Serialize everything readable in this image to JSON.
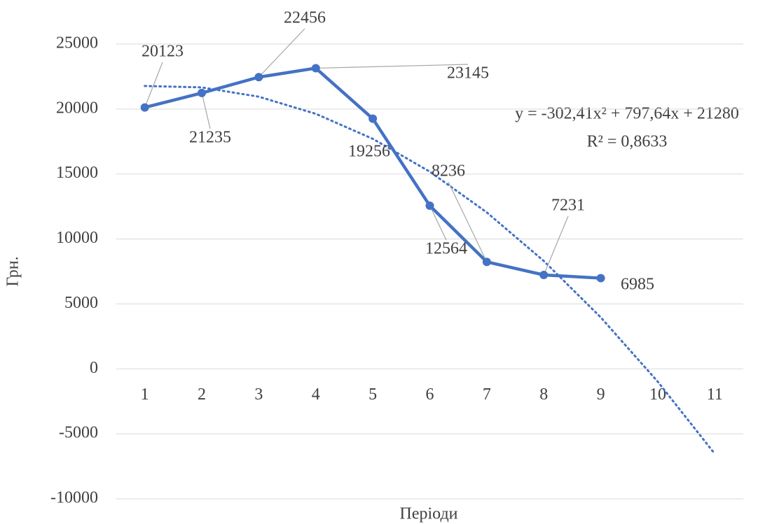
{
  "chart_data": {
    "type": "line",
    "x_label": "Періоди",
    "y_label": "Грн.",
    "categories": [
      "1",
      "2",
      "3",
      "4",
      "5",
      "6",
      "7",
      "8",
      "9",
      "10",
      "11"
    ],
    "series": [
      {
        "name": "Грн.",
        "color": "#4472c4",
        "values": [
          20123,
          21235,
          22456,
          23145,
          19256,
          12564,
          8236,
          7231,
          6985,
          null,
          null
        ]
      }
    ],
    "trendline": {
      "color": "#4472c4",
      "style": "dotted",
      "values": [
        21775,
        21666,
        20951,
        19632,
        17708,
        15179,
        12045,
        8307,
        3964,
        -985,
        -6537
      ]
    },
    "annotations": [
      "y = -302,41x² + 797,64x + 21280",
      "R² = 0,8633"
    ],
    "ylim": [
      -10000,
      25000
    ],
    "yticks": [
      -10000,
      -5000,
      0,
      5000,
      10000,
      15000,
      20000,
      25000
    ],
    "grid": true
  }
}
